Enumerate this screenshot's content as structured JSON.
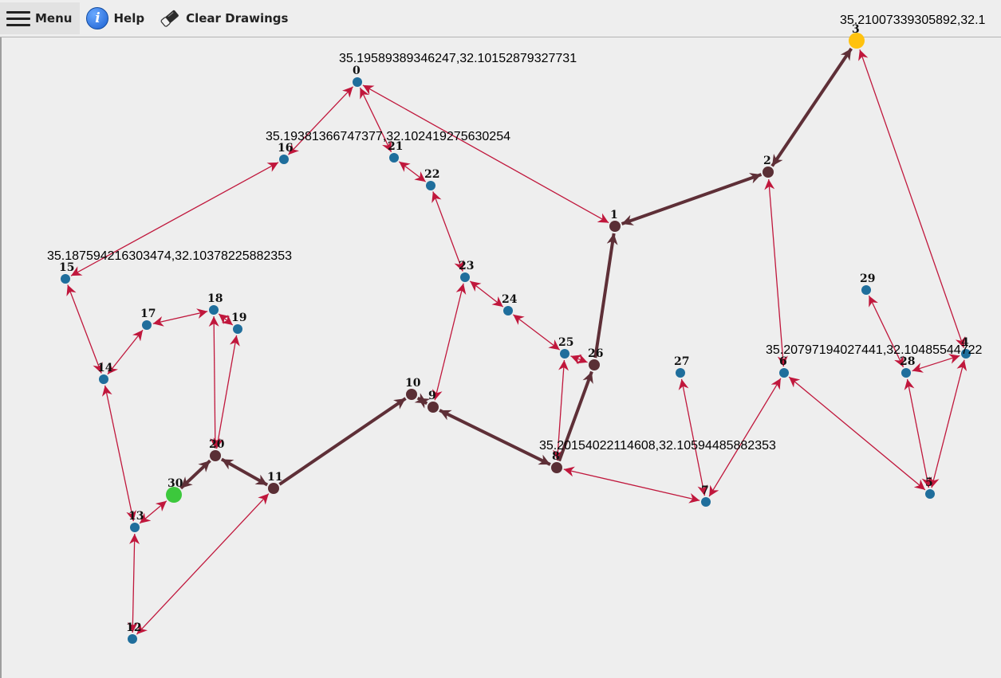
{
  "toolbar": {
    "menu_label": "Menu",
    "help_label": "Help",
    "clear_label": "Clear Drawings"
  },
  "colors": {
    "node_default": "#1f6e9c",
    "node_path": "#5a2f35",
    "node_start": "#3cc83c",
    "node_end": "#ffc20e",
    "edge": "#c0173c",
    "edge_path": "#5e2f37"
  },
  "graph": {
    "nodes": [
      {
        "id": "0",
        "type": "default"
      },
      {
        "id": "1",
        "type": "path"
      },
      {
        "id": "2",
        "type": "path"
      },
      {
        "id": "3",
        "type": "end"
      },
      {
        "id": "4",
        "type": "default"
      },
      {
        "id": "5",
        "type": "default"
      },
      {
        "id": "6",
        "type": "default"
      },
      {
        "id": "7",
        "type": "default"
      },
      {
        "id": "8",
        "type": "path"
      },
      {
        "id": "9",
        "type": "path"
      },
      {
        "id": "10",
        "type": "path"
      },
      {
        "id": "11",
        "type": "path"
      },
      {
        "id": "12",
        "type": "default"
      },
      {
        "id": "13",
        "type": "default"
      },
      {
        "id": "14",
        "type": "default"
      },
      {
        "id": "15",
        "type": "default"
      },
      {
        "id": "16",
        "type": "default"
      },
      {
        "id": "17",
        "type": "default"
      },
      {
        "id": "18",
        "type": "default"
      },
      {
        "id": "19",
        "type": "default"
      },
      {
        "id": "20",
        "type": "path"
      },
      {
        "id": "21",
        "type": "default"
      },
      {
        "id": "22",
        "type": "default"
      },
      {
        "id": "23",
        "type": "default"
      },
      {
        "id": "24",
        "type": "default"
      },
      {
        "id": "25",
        "type": "default"
      },
      {
        "id": "26",
        "type": "path"
      },
      {
        "id": "27",
        "type": "default"
      },
      {
        "id": "28",
        "type": "default"
      },
      {
        "id": "29",
        "type": "default"
      },
      {
        "id": "30",
        "type": "start"
      }
    ],
    "coordinate_labels": [
      {
        "node": "3",
        "text": "35.21007339305892,32.1"
      },
      {
        "node": "0",
        "text": "35.19589389346247,32.10152879327731"
      },
      {
        "node": "16",
        "text": "35.19381366747377,32.102419275630254"
      },
      {
        "node": "15",
        "text": "35.187594216303474,32.10378225882353"
      },
      {
        "node": "6",
        "text": "35.20797194027441,32.10485544722"
      },
      {
        "node": "8",
        "text": "35.20154022114608,32.10594485882353"
      }
    ],
    "edges": [
      {
        "from": "0",
        "to": "21",
        "dir": "both",
        "path": false
      },
      {
        "from": "0",
        "to": "16",
        "dir": "both",
        "path": false
      },
      {
        "from": "0",
        "to": "1",
        "dir": "both",
        "path": false
      },
      {
        "from": "21",
        "to": "22",
        "dir": "both",
        "path": false
      },
      {
        "from": "22",
        "to": "23",
        "dir": "both",
        "path": false
      },
      {
        "from": "16",
        "to": "15",
        "dir": "both",
        "path": false
      },
      {
        "from": "15",
        "to": "14",
        "dir": "both",
        "path": false
      },
      {
        "from": "14",
        "to": "17",
        "dir": "both",
        "path": false
      },
      {
        "from": "14",
        "to": "13",
        "dir": "both",
        "path": false
      },
      {
        "from": "17",
        "to": "18",
        "dir": "both",
        "path": false
      },
      {
        "from": "18",
        "to": "19",
        "dir": "both",
        "path": false
      },
      {
        "from": "18",
        "to": "20",
        "dir": "both",
        "path": false
      },
      {
        "from": "19",
        "to": "20",
        "dir": "both",
        "path": false
      },
      {
        "from": "13",
        "to": "12",
        "dir": "both",
        "path": false
      },
      {
        "from": "13",
        "to": "30",
        "dir": "both",
        "path": false
      },
      {
        "from": "12",
        "to": "11",
        "dir": "both",
        "path": false
      },
      {
        "from": "23",
        "to": "24",
        "dir": "both",
        "path": false
      },
      {
        "from": "23",
        "to": "9",
        "dir": "both",
        "path": false
      },
      {
        "from": "24",
        "to": "25",
        "dir": "both",
        "path": false
      },
      {
        "from": "25",
        "to": "26",
        "dir": "both",
        "path": false
      },
      {
        "from": "25",
        "to": "8",
        "dir": "both",
        "path": false
      },
      {
        "from": "8",
        "to": "7",
        "dir": "both",
        "path": false
      },
      {
        "from": "7",
        "to": "27",
        "dir": "both",
        "path": false
      },
      {
        "from": "7",
        "to": "6",
        "dir": "both",
        "path": false
      },
      {
        "from": "6",
        "to": "2",
        "dir": "both",
        "path": false
      },
      {
        "from": "6",
        "to": "5",
        "dir": "both",
        "path": false
      },
      {
        "from": "5",
        "to": "28",
        "dir": "both",
        "path": false
      },
      {
        "from": "5",
        "to": "4",
        "dir": "both",
        "path": false
      },
      {
        "from": "28",
        "to": "29",
        "dir": "both",
        "path": false
      },
      {
        "from": "28",
        "to": "4",
        "dir": "both",
        "path": false
      },
      {
        "from": "4",
        "to": "3",
        "dir": "both",
        "path": false
      },
      {
        "from": "30",
        "to": "20",
        "dir": "both",
        "path": true
      },
      {
        "from": "20",
        "to": "11",
        "dir": "both",
        "path": true
      },
      {
        "from": "11",
        "to": "10",
        "dir": "forward",
        "path": true
      },
      {
        "from": "10",
        "to": "9",
        "dir": "both",
        "path": true
      },
      {
        "from": "9",
        "to": "8",
        "dir": "both",
        "path": true
      },
      {
        "from": "8",
        "to": "26",
        "dir": "forward",
        "path": true
      },
      {
        "from": "26",
        "to": "1",
        "dir": "forward",
        "path": true
      },
      {
        "from": "1",
        "to": "2",
        "dir": "both",
        "path": true
      },
      {
        "from": "2",
        "to": "3",
        "dir": "both",
        "path": true
      }
    ]
  }
}
